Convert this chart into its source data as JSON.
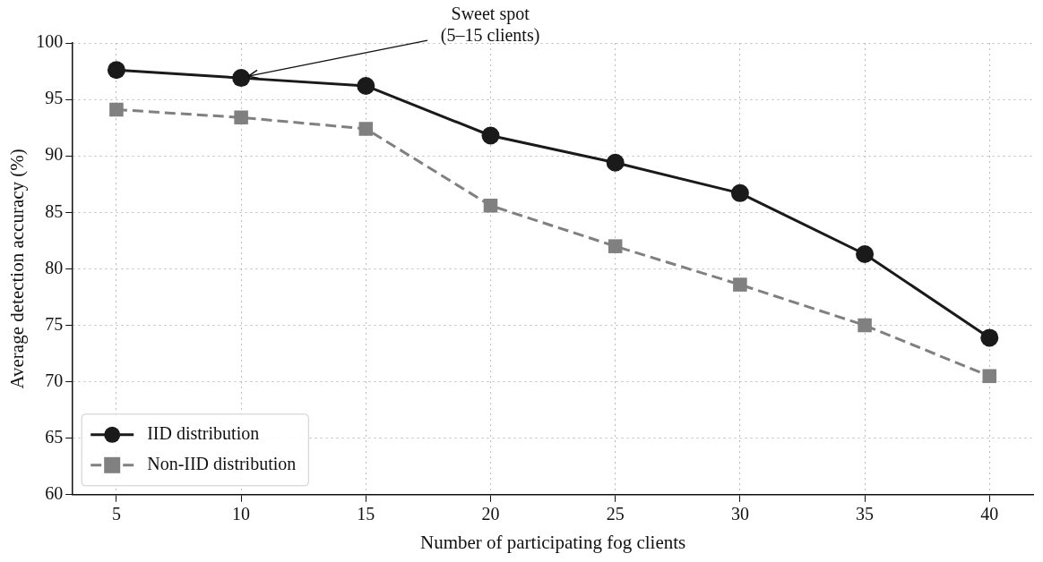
{
  "chart_data": {
    "type": "line",
    "xlabel": "Number of participating fog clients",
    "ylabel": "Average detection accuracy (%)",
    "x": [
      5,
      10,
      15,
      20,
      25,
      30,
      35,
      40
    ],
    "xlim": [
      3.25,
      41.75
    ],
    "xticks": [
      5,
      10,
      15,
      20,
      25,
      30,
      35,
      40
    ],
    "ylim": [
      60,
      100
    ],
    "yticks": [
      60,
      65,
      70,
      75,
      80,
      85,
      90,
      95,
      100
    ],
    "grid": true,
    "legend": "bottom left",
    "series": [
      {
        "name": "IID distribution",
        "color": "#1a1a1a",
        "marker": "circle",
        "line_style": "solid",
        "values": [
          97.6,
          96.9,
          96.2,
          91.8,
          89.4,
          86.7,
          81.3,
          73.9
        ]
      },
      {
        "name": "Non-IID distribution",
        "color": "#808080",
        "marker": "square",
        "line_style": "dashed",
        "values": [
          94.1,
          93.4,
          92.4,
          85.6,
          82.0,
          78.6,
          75.0,
          70.5
        ]
      }
    ],
    "annotations": [
      {
        "text": "Sweet spot\n(5–15 clients)",
        "x": 10,
        "y": 96.9
      }
    ]
  }
}
